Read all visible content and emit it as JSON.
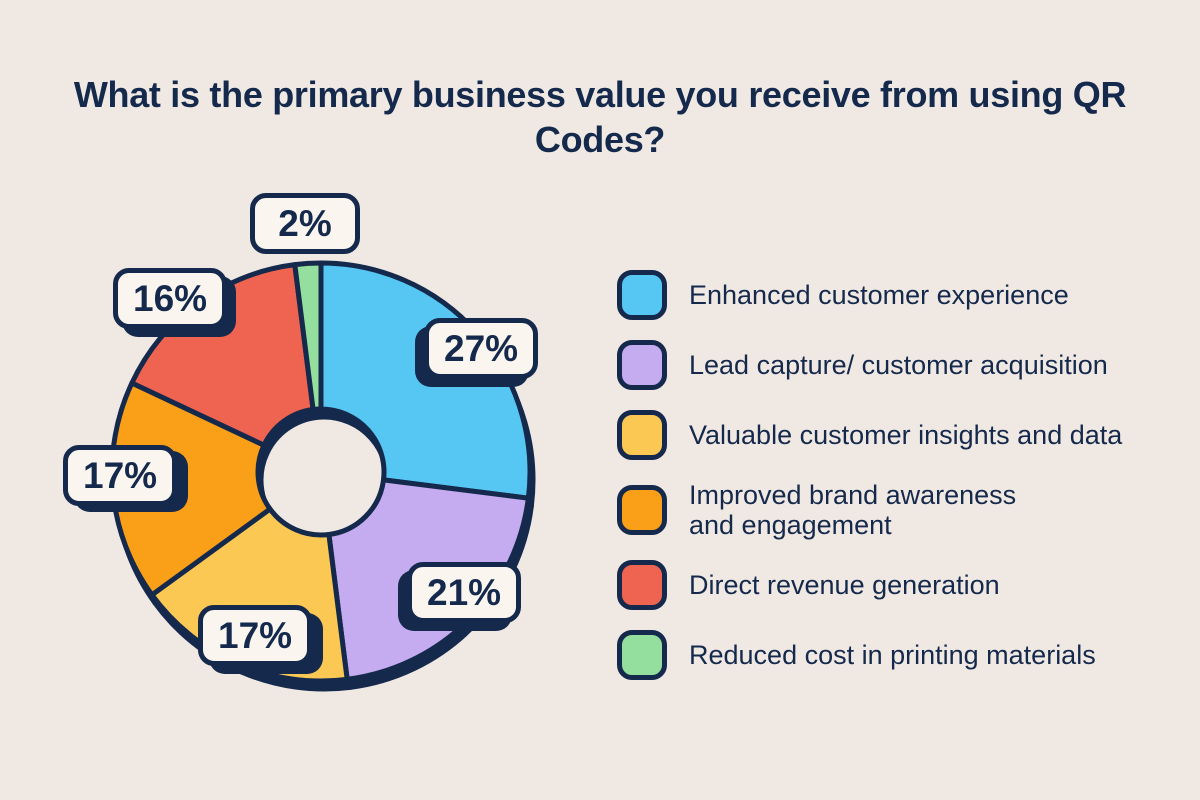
{
  "page": {
    "background": "#F0E9E3",
    "text_color": "#14294C",
    "outline_color": "#14294C",
    "label_box_background": "#FAF6EF"
  },
  "chart_data": {
    "type": "pie",
    "style": "donut",
    "title": "What is the primary business value you receive from using QR Codes?",
    "categories": [
      "Enhanced customer experience",
      "Lead capture/ customer acquisition",
      "Valuable customer insights and data",
      "Improved brand awareness and engagement",
      "Direct revenue generation",
      "Reduced cost in printing materials"
    ],
    "values": [
      27,
      21,
      17,
      17,
      16,
      2
    ],
    "pct_labels": [
      "27%",
      "21%",
      "17%",
      "17%",
      "16%",
      "2%"
    ],
    "colors": [
      "#56C7F3",
      "#C5ABF0",
      "#FBC854",
      "#F9A018",
      "#EF6450",
      "#94DF9E"
    ],
    "start_angle_deg": 0,
    "direction": "clockwise",
    "donut_hole_ratio": 0.3,
    "legend_position": "right"
  }
}
